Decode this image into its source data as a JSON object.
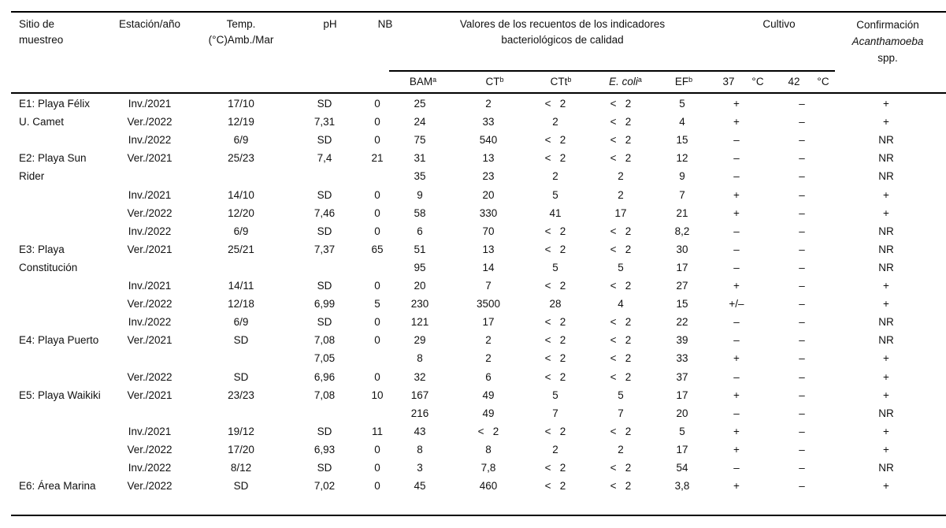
{
  "header": {
    "sitio": [
      "Sitio de",
      "muestreo"
    ],
    "estacion": "Estación/año",
    "temp": [
      "Temp.",
      "(°C)Amb./Mar"
    ],
    "ph": "pH",
    "nb": "NB",
    "valores": [
      "Valores de los recuentos de los indicadores",
      "bacteriológicos de calidad"
    ],
    "cultivo": "Cultivo",
    "confirmacion": [
      "Confirmación",
      "Acanthamoeba",
      "spp."
    ],
    "sub": {
      "bam": {
        "text": "BAM",
        "sup": "a"
      },
      "ct": {
        "text": "CT",
        "sup": "b"
      },
      "ctt": {
        "text": "CTt",
        "sup": "b"
      },
      "ecoli": {
        "text": "E. coli",
        "sup": "a"
      },
      "ef": {
        "text": "EF",
        "sup": "b"
      },
      "t37": "37",
      "degc1": "°C",
      "t42": "42",
      "degc2": "°C"
    }
  },
  "sites": [
    {
      "name": "E1: Playa Félix U. Camet",
      "start_row": 0
    },
    {
      "name": "E2: Playa Sun Rider",
      "start_row": 3
    },
    {
      "name": "E3: Playa Constitución",
      "start_row": 8
    },
    {
      "name": "E4: Playa Puerto",
      "start_row": 13
    },
    {
      "name": "E5: Playa Waikiki",
      "start_row": 16
    },
    {
      "name": "E6: Área Marina",
      "start_row": 21
    }
  ],
  "rows": [
    [
      "Inv./2021",
      "17/10",
      "SD",
      "0",
      "25",
      "2",
      "<   2",
      "<   2",
      "5",
      "+",
      "–",
      "+"
    ],
    [
      "Ver./2022",
      "12/19",
      "7,31",
      "0",
      "24",
      "33",
      "2",
      "<   2",
      "4",
      "+",
      "–",
      "+"
    ],
    [
      "Inv./2022",
      "6/9",
      "SD",
      "0",
      "75",
      "540",
      "<   2",
      "<   2",
      "15",
      "–",
      "–",
      "NR"
    ],
    [
      "Ver./2021",
      "25/23",
      "7,4",
      "21",
      "31",
      "13",
      "<   2",
      "<   2",
      "12",
      "–",
      "–",
      "NR"
    ],
    [
      "",
      "",
      "",
      "",
      "35",
      "23",
      "2",
      "2",
      "9",
      "–",
      "–",
      "NR"
    ],
    [
      "Inv./2021",
      "14/10",
      "SD",
      "0",
      "9",
      "20",
      "5",
      "2",
      "7",
      "+",
      "–",
      "+"
    ],
    [
      "Ver./2022",
      "12/20",
      "7,46",
      "0",
      "58",
      "330",
      "41",
      "17",
      "21",
      "+",
      "–",
      "+"
    ],
    [
      "Inv./2022",
      "6/9",
      "SD",
      "0",
      "6",
      "70",
      "<   2",
      "<   2",
      "8,2",
      "–",
      "–",
      "NR"
    ],
    [
      "Ver./2021",
      "25/21",
      "7,37",
      "65",
      "51",
      "13",
      "<   2",
      "<   2",
      "30",
      "–",
      "–",
      "NR"
    ],
    [
      "",
      "",
      "",
      "",
      "95",
      "14",
      "5",
      "5",
      "17",
      "–",
      "–",
      "NR"
    ],
    [
      "Inv./2021",
      "14/11",
      "SD",
      "0",
      "20",
      "7",
      "<   2",
      "<   2",
      "27",
      "+",
      "–",
      "+"
    ],
    [
      "Ver./2022",
      "12/18",
      "6,99",
      "5",
      "230",
      "3500",
      "28",
      "4",
      "15",
      "+/–",
      "–",
      "+"
    ],
    [
      "Inv./2022",
      "6/9",
      "SD",
      "0",
      "121",
      "17",
      "<   2",
      "<   2",
      "22",
      "–",
      "–",
      "NR"
    ],
    [
      "Ver./2021",
      "SD",
      "7,08",
      "0",
      "29",
      "2",
      "<   2",
      "<   2",
      "39",
      "–",
      "–",
      "NR"
    ],
    [
      "",
      "",
      "7,05",
      "",
      "8",
      "2",
      "<   2",
      "<   2",
      "33",
      "+",
      "–",
      "+"
    ],
    [
      "Ver./2022",
      "SD",
      "6,96",
      "0",
      "32",
      "6",
      "<   2",
      "<   2",
      "37",
      "–",
      "–",
      "+"
    ],
    [
      "Ver./2021",
      "23/23",
      "7,08",
      "10",
      "167",
      "49",
      "5",
      "5",
      "17",
      "+",
      "–",
      "+"
    ],
    [
      "",
      "",
      "",
      "",
      "216",
      "49",
      "7",
      "7",
      "20",
      "–",
      "–",
      "NR"
    ],
    [
      "Inv./2021",
      "19/12",
      "SD",
      "11",
      "43",
      "<   2",
      "<   2",
      "<   2",
      "5",
      "+",
      "–",
      "+"
    ],
    [
      "Ver./2022",
      "17/20",
      "6,93",
      "0",
      "8",
      "8",
      "2",
      "2",
      "17",
      "+",
      "–",
      "+"
    ],
    [
      "Inv./2022",
      "8/12",
      "SD",
      "0",
      "3",
      "7,8",
      "<   2",
      "<   2",
      "54",
      "–",
      "–",
      "NR"
    ],
    [
      "Ver./2022",
      "SD",
      "7,02",
      "0",
      "45",
      "460",
      "<   2",
      "<   2",
      "3,8",
      "+",
      "–",
      "+"
    ]
  ]
}
